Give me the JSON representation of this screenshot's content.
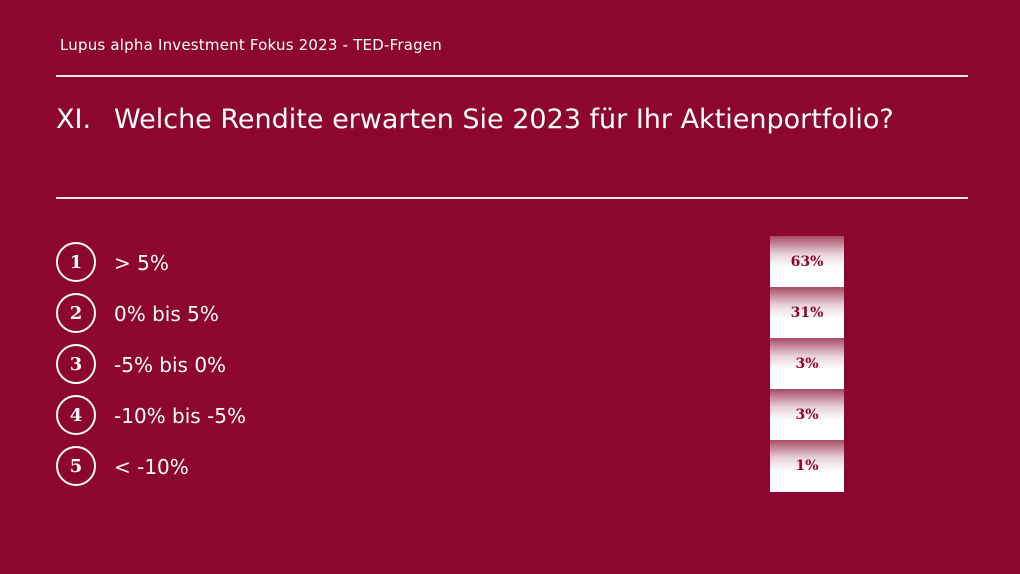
{
  "header": {
    "text": "Lupus alpha Investment Fokus 2023 - TED-Fragen"
  },
  "question": {
    "number": "XI.",
    "text": "Welche Rendite erwarten Sie 2023 für Ihr Aktienportfolio?"
  },
  "answers": [
    {
      "num": "1",
      "label": "> 5%",
      "result": "63%"
    },
    {
      "num": "2",
      "label": "0% bis 5%",
      "result": "31%"
    },
    {
      "num": "3",
      "label": "-5% bis 0%",
      "result": "3%"
    },
    {
      "num": "4",
      "label": "-10% bis -5%",
      "result": "3%"
    },
    {
      "num": "5",
      "label": "< -10%",
      "result": "1%"
    }
  ],
  "colors": {
    "background": "#8c0630",
    "text": "#ffffff",
    "result_text": "#8c0630"
  }
}
